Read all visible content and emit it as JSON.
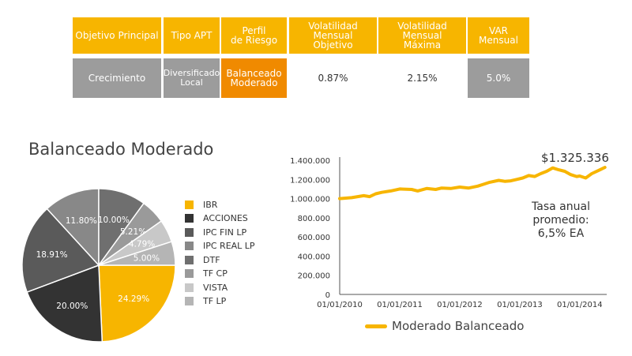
{
  "table": {
    "headers": [
      [
        "Objetivo Principal"
      ],
      [
        "Tipo APT"
      ],
      [
        "Perfil",
        "de Riesgo"
      ],
      [
        "Volatilidad",
        "Mensual",
        "Objetivo"
      ],
      [
        "Volatilidad",
        "Mensual",
        "Máxima"
      ],
      [
        "VAR",
        "Mensual"
      ]
    ],
    "row": [
      [
        "Crecimiento"
      ],
      [
        "Diversificado",
        "Local"
      ],
      [
        "Balanceado",
        "Moderado"
      ],
      [
        "0.87%"
      ],
      [
        "2.15%"
      ],
      [
        "5.0%"
      ]
    ]
  },
  "colors": {
    "accent": "#f7b500",
    "orange": "#f08a00",
    "gray": "#9c9c9c"
  },
  "chart_data": [
    {
      "type": "pie",
      "title": "Balanceado Moderado",
      "categories": [
        "IBR",
        "ACCIONES",
        "IPC FIN LP",
        "IPC REAL LP",
        "DTF",
        "TF CP",
        "VISTA",
        "TF LP"
      ],
      "values": [
        24.29,
        20.0,
        18.91,
        11.8,
        10.0,
        5.21,
        4.79,
        5.0
      ],
      "slice_labels": [
        "24.29%",
        "20.00%",
        "18.91%",
        "11.80%",
        "10.00%",
        "5.21%",
        "4.79%",
        "5.00%"
      ],
      "colors": [
        "#f7b500",
        "#333333",
        "#5a5a5a",
        "#888888",
        "#6f6f6f",
        "#9a9a9a",
        "#c8c8c8",
        "#b5b5b5"
      ],
      "legend_position": "right"
    },
    {
      "type": "line",
      "series": [
        {
          "name": "Moderado Balanceado",
          "color": "#f7b500",
          "x": [
            2010.0,
            2010.2,
            2010.4,
            2010.5,
            2010.6,
            2010.7,
            2010.85,
            2011.0,
            2011.2,
            2011.3,
            2011.45,
            2011.6,
            2011.7,
            2011.85,
            2012.0,
            2012.15,
            2012.3,
            2012.4,
            2012.5,
            2012.65,
            2012.75,
            2012.85,
            2012.95,
            2013.05,
            2013.15,
            2013.25,
            2013.35,
            2013.45,
            2013.55,
            2013.65,
            2013.75,
            2013.85,
            2013.95,
            2014.0,
            2014.1,
            2014.2,
            2014.3,
            2014.42
          ],
          "y": [
            1000000,
            1010000,
            1030000,
            1020000,
            1050000,
            1065000,
            1080000,
            1100000,
            1095000,
            1080000,
            1105000,
            1095000,
            1110000,
            1105000,
            1120000,
            1110000,
            1130000,
            1150000,
            1170000,
            1190000,
            1180000,
            1185000,
            1200000,
            1215000,
            1240000,
            1230000,
            1260000,
            1285000,
            1320000,
            1300000,
            1285000,
            1250000,
            1230000,
            1235000,
            1215000,
            1260000,
            1290000,
            1325336
          ]
        }
      ],
      "yticks": [
        0,
        200000,
        400000,
        600000,
        800000,
        1000000,
        1200000,
        1400000
      ],
      "ytick_labels": [
        "0",
        "200.000",
        "400.000",
        "600.000",
        "800.000",
        "1.000.000",
        "1.200.000",
        "1.400.000"
      ],
      "xticks": [
        2010,
        2011,
        2012,
        2013,
        2014
      ],
      "xtick_labels": [
        "01/01/2010",
        "01/01/2011",
        "01/01/2012",
        "01/01/2013",
        "01/01/2014"
      ],
      "xlim": [
        2010,
        2014.45
      ],
      "ylim": [
        0,
        1400000
      ],
      "final_value_label": "$1.325.336",
      "annotation": [
        "Tasa anual",
        "promedio:",
        "6,5% EA"
      ],
      "legend_label": "Moderado Balanceado",
      "legend_position": "bottom"
    }
  ]
}
